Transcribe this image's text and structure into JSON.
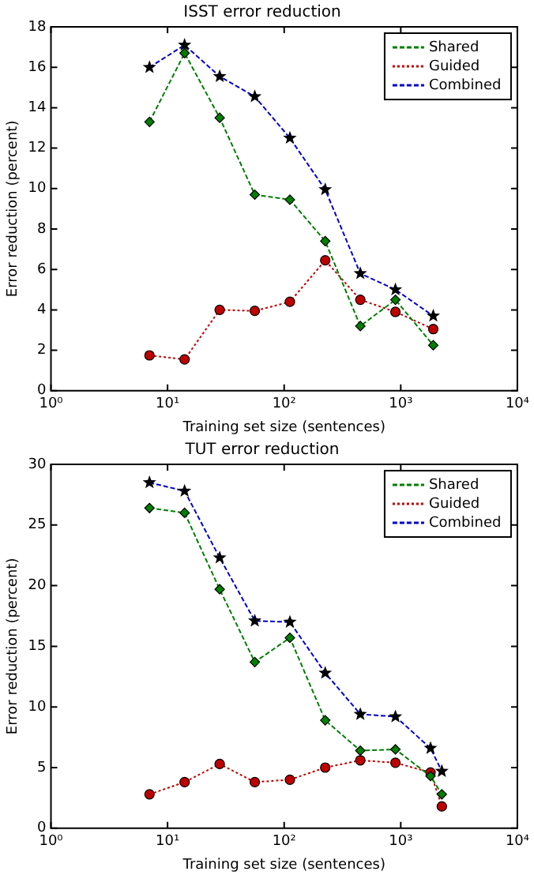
{
  "chart_data": [
    {
      "type": "line",
      "title": "ISST error reduction",
      "xlabel": "Training set size (sentences)",
      "ylabel": "Error reduction (percent)",
      "log": "x",
      "x": [
        7,
        14,
        28,
        56,
        112,
        225,
        450,
        900,
        1900
      ],
      "series": [
        {
          "name": "Shared",
          "color": "#007f00",
          "marker": "diamond",
          "line_style": "dashed",
          "values": [
            13.3,
            16.7,
            13.5,
            9.7,
            9.45,
            7.4,
            3.2,
            4.5,
            2.25
          ]
        },
        {
          "name": "Guided",
          "color": "#bf0000",
          "marker": "circle",
          "line_style": "dotted",
          "values": [
            1.75,
            1.55,
            4.0,
            3.95,
            4.4,
            6.45,
            4.5,
            3.9,
            3.05
          ]
        },
        {
          "name": "Combined",
          "color": "#0000cc",
          "marker": "star",
          "line_style": "dashed",
          "values": [
            16.0,
            17.1,
            15.55,
            14.55,
            12.5,
            9.95,
            5.8,
            5.0,
            3.7
          ]
        }
      ],
      "xlim": [
        1,
        10000
      ],
      "xticks": [
        {
          "value": 1,
          "label": "10⁰"
        },
        {
          "value": 10,
          "label": "10¹"
        },
        {
          "value": 100,
          "label": "10²"
        },
        {
          "value": 1000,
          "label": "10³"
        },
        {
          "value": 10000,
          "label": "10⁴"
        }
      ],
      "ylim": [
        0,
        18
      ],
      "yticks": [
        0,
        2,
        4,
        6,
        8,
        10,
        12,
        14,
        16,
        18
      ],
      "grid": false,
      "legend": "top right"
    },
    {
      "type": "line",
      "title": "TUT error reduction",
      "xlabel": "Training set size (sentences)",
      "ylabel": "Error reduction (percent)",
      "log": "x",
      "x": [
        7,
        14,
        28,
        56,
        112,
        225,
        450,
        900,
        1800,
        2250
      ],
      "series": [
        {
          "name": "Shared",
          "color": "#007f00",
          "marker": "diamond",
          "line_style": "dashed",
          "values": [
            26.4,
            26.0,
            19.7,
            13.7,
            15.7,
            8.9,
            6.4,
            6.5,
            4.3,
            2.8
          ]
        },
        {
          "name": "Guided",
          "color": "#bf0000",
          "marker": "circle",
          "line_style": "dotted",
          "values": [
            2.8,
            3.8,
            5.3,
            3.8,
            4.0,
            5.0,
            5.6,
            5.4,
            4.6,
            1.8
          ]
        },
        {
          "name": "Combined",
          "color": "#0000cc",
          "marker": "star",
          "line_style": "dashed",
          "values": [
            28.5,
            27.8,
            22.3,
            17.1,
            17.0,
            12.8,
            9.4,
            9.2,
            6.6,
            4.7
          ]
        }
      ],
      "xlim": [
        1,
        10000
      ],
      "xticks": [
        {
          "value": 1,
          "label": "10⁰"
        },
        {
          "value": 10,
          "label": "10¹"
        },
        {
          "value": 100,
          "label": "10²"
        },
        {
          "value": 1000,
          "label": "10³"
        },
        {
          "value": 10000,
          "label": "10⁴"
        }
      ],
      "ylim": [
        0,
        30
      ],
      "yticks": [
        0,
        5,
        10,
        15,
        20,
        25,
        30
      ],
      "grid": false,
      "legend": "top right"
    }
  ]
}
